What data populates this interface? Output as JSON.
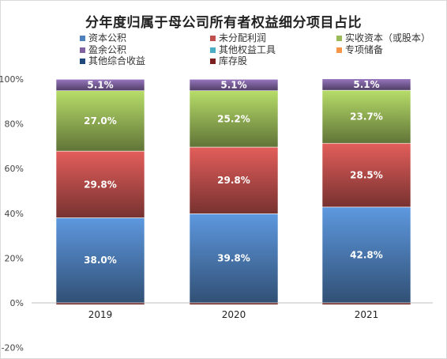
{
  "chart_data": {
    "type": "bar",
    "stacked": true,
    "title": "分年度归属于母公司所有者权益细分项目占比",
    "categories": [
      "2019",
      "2020",
      "2021"
    ],
    "ylim": [
      -0.2,
      1.0
    ],
    "yticks": [
      "100%",
      "80%",
      "60%",
      "40%",
      "20%",
      "0%",
      "-20%"
    ],
    "ytick_values": [
      1.0,
      0.8,
      0.6,
      0.4,
      0.2,
      0.0,
      -0.2
    ],
    "legend_position": "top",
    "series": [
      {
        "name": "库存股",
        "color": "#7b1f1f",
        "values": [
          -0.008,
          -0.008,
          -0.008
        ],
        "labels": [
          "",
          "",
          ""
        ]
      },
      {
        "name": "资本公积",
        "color": "#4f81bd",
        "values": [
          0.38,
          0.398,
          0.428
        ],
        "labels": [
          "38.0%",
          "39.8%",
          "42.8%"
        ]
      },
      {
        "name": "未分配利润",
        "color": "#c0504d",
        "values": [
          0.298,
          0.298,
          0.285
        ],
        "labels": [
          "29.8%",
          "29.8%",
          "28.5%"
        ]
      },
      {
        "name": "实收资本（或股本）",
        "color": "#9bbb59",
        "values": [
          0.27,
          0.252,
          0.237
        ],
        "labels": [
          "27.0%",
          "25.2%",
          "23.7%"
        ]
      },
      {
        "name": "盈余公积",
        "color": "#8064a2",
        "values": [
          0.051,
          0.051,
          0.051
        ],
        "labels": [
          "5.1%",
          "5.1%",
          "5.1%"
        ]
      },
      {
        "name": "其他权益工具",
        "color": "#4bacc6",
        "values": [
          0,
          0,
          0
        ],
        "labels": [
          "",
          "",
          ""
        ]
      },
      {
        "name": "专项储备",
        "color": "#f79646",
        "values": [
          0,
          0,
          0
        ],
        "labels": [
          "",
          "",
          ""
        ]
      },
      {
        "name": "其他综合收益",
        "color": "#1f497d",
        "values": [
          0,
          0,
          0
        ],
        "labels": [
          "",
          "",
          ""
        ]
      }
    ]
  },
  "legend": [
    {
      "label": "资本公积",
      "color": "#4f81bd"
    },
    {
      "label": "未分配利润",
      "color": "#c0504d"
    },
    {
      "label": "实收资本（或股本）",
      "color": "#9bbb59"
    },
    {
      "label": "盈余公积",
      "color": "#8064a2"
    },
    {
      "label": "其他权益工具",
      "color": "#4bacc6"
    },
    {
      "label": "专项储备",
      "color": "#f79646"
    },
    {
      "label": "其他综合收益",
      "color": "#1f497d"
    },
    {
      "label": "库存股",
      "color": "#7b1f1f"
    }
  ]
}
